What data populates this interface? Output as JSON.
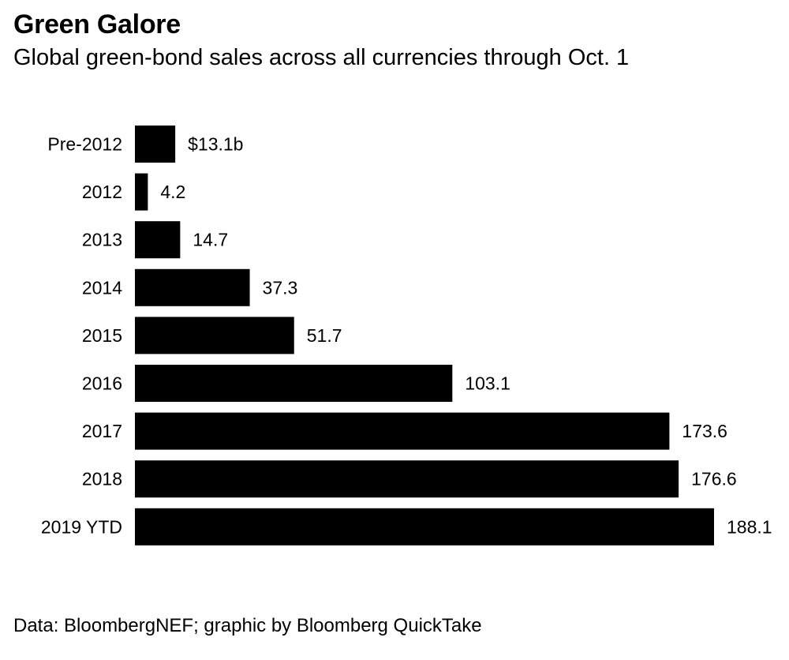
{
  "header": {
    "title": "Green Galore",
    "subtitle": "Global green-bond sales across all currencies through Oct. 1"
  },
  "footer": {
    "source": "Data: BloombergNEF; graphic by Bloomberg QuickTake"
  },
  "colors": {
    "bar": "#000000",
    "text": "#000000",
    "background": "#ffffff"
  },
  "chart_data": {
    "type": "bar",
    "orientation": "horizontal",
    "title": "Green Galore",
    "subtitle": "Global green-bond sales across all currencies through Oct. 1",
    "xlabel": "",
    "ylabel": "",
    "grid": false,
    "legend": "none",
    "categories": [
      "Pre-2012",
      "2012",
      "2013",
      "2014",
      "2015",
      "2016",
      "2017",
      "2018",
      "2019 YTD"
    ],
    "values": [
      13.1,
      4.2,
      14.7,
      37.3,
      51.7,
      103.1,
      173.6,
      176.6,
      188.1
    ],
    "value_labels": [
      "$13.1b",
      "4.2",
      "14.7",
      "37.3",
      "51.7",
      "103.1",
      "173.6",
      "176.6",
      "188.1"
    ],
    "xlim": [
      0,
      188.1
    ]
  }
}
